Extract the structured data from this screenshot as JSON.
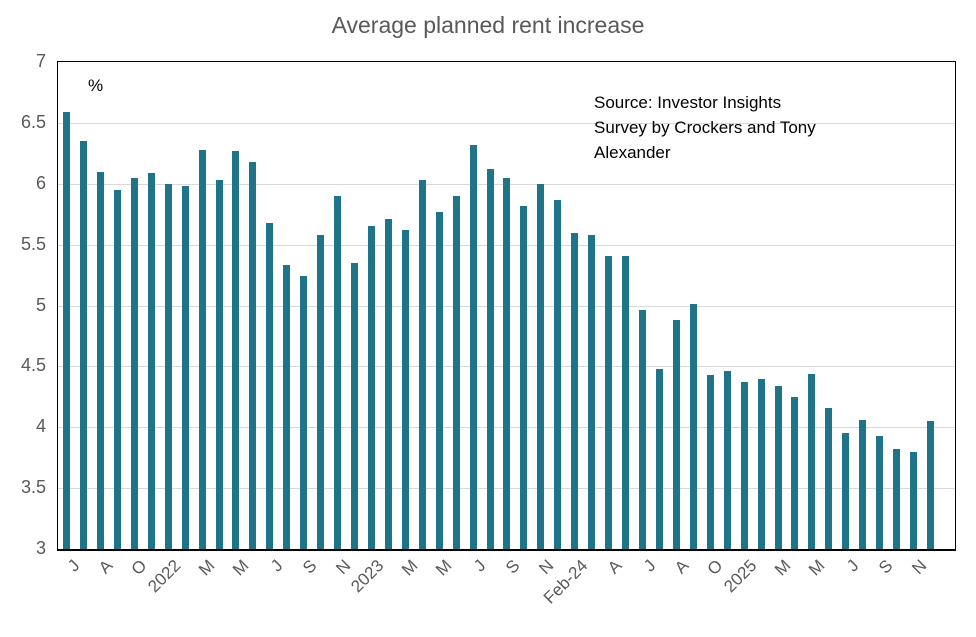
{
  "chart_data": {
    "type": "bar",
    "title": "Average planned rent increase",
    "unit_label": "%",
    "source_note_lines": [
      "Source: Investor Insights",
      "Survey by Crockers and Tony",
      "Alexander"
    ],
    "ylim": [
      3,
      7
    ],
    "y_tick_labels": [
      "7",
      "6.5",
      "6",
      "5.5",
      "5",
      "4.5",
      "4",
      "3.5",
      "3"
    ],
    "y_gridline_values": [
      6.5,
      6,
      5.5,
      5,
      4.5,
      4,
      3.5
    ],
    "x_tick_labels": [
      "J",
      "A",
      "O",
      "2022",
      "M",
      "M",
      "J",
      "S",
      "N",
      "2023",
      "M",
      "M",
      "J",
      "S",
      "N",
      "Feb-24",
      "A",
      "J",
      "A",
      "O",
      "2025",
      "M",
      "M",
      "J",
      "S",
      "N"
    ],
    "x_tick_every_n_bars": 2,
    "legend_position": "none",
    "grid": "horizontal",
    "colors": {
      "bar": "#1F7487",
      "axis_text": "#595959",
      "title_text": "#595959",
      "gridline": "#D9D9D9",
      "plot_border": "#000000",
      "annotation_text": "#000000"
    },
    "values": [
      6.59,
      6.35,
      6.1,
      5.95,
      6.05,
      6.09,
      6.0,
      5.98,
      6.28,
      6.03,
      6.27,
      6.18,
      5.68,
      5.33,
      5.24,
      5.58,
      5.9,
      5.35,
      5.65,
      5.71,
      5.62,
      6.03,
      5.77,
      5.9,
      6.32,
      6.12,
      6.05,
      5.82,
      6.0,
      5.87,
      5.6,
      5.58,
      5.41,
      5.41,
      4.96,
      4.48,
      4.88,
      5.01,
      4.43,
      4.46,
      4.37,
      4.4,
      4.34,
      4.25,
      4.44,
      4.16,
      3.95,
      4.06,
      3.93,
      3.82,
      3.8,
      4.05
    ]
  }
}
